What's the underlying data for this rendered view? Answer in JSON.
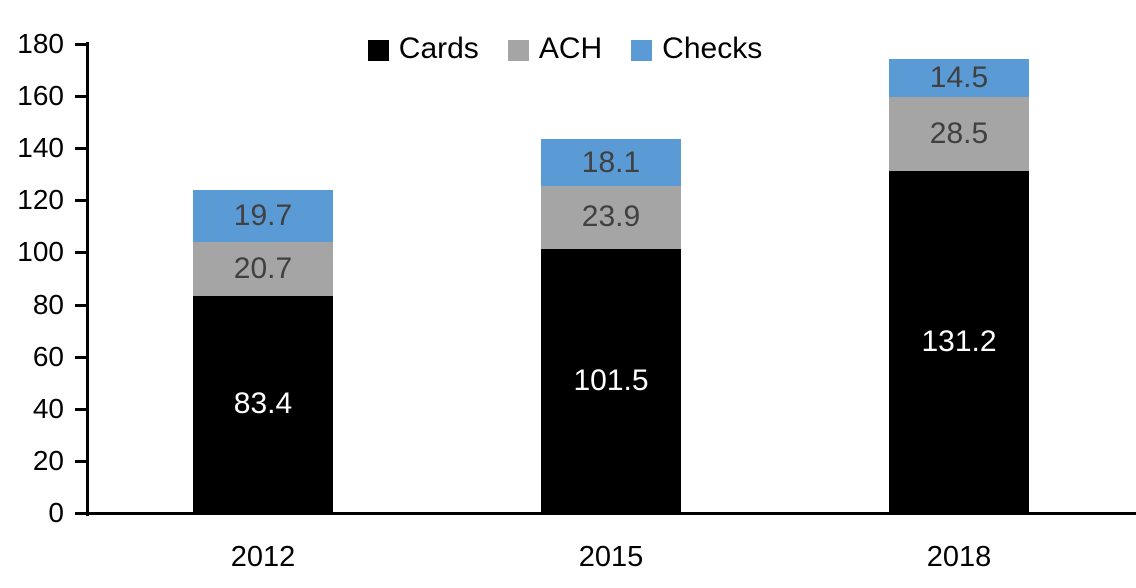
{
  "chart_data": {
    "type": "bar",
    "stacked": true,
    "title": "",
    "xlabel": "",
    "ylabel": "",
    "categories": [
      "2012",
      "2015",
      "2018"
    ],
    "series": [
      {
        "name": "Cards",
        "color": "#000000",
        "label_color": "#ffffff",
        "values": [
          83.4,
          101.5,
          131.2
        ]
      },
      {
        "name": "ACH",
        "color": "#A5A5A5",
        "label_color": "#404040",
        "values": [
          20.7,
          23.9,
          28.5
        ]
      },
      {
        "name": "Checks",
        "color": "#5B9BD5",
        "label_color": "#404040",
        "values": [
          19.7,
          18.1,
          14.5
        ]
      }
    ],
    "ylim": [
      0,
      180
    ],
    "yticks": [
      0,
      20,
      40,
      60,
      80,
      100,
      120,
      140,
      160,
      180
    ],
    "grid": false,
    "legend_position": "top",
    "data_labels": "inside-center",
    "axis_color": "#000000",
    "background_color": "#ffffff"
  }
}
